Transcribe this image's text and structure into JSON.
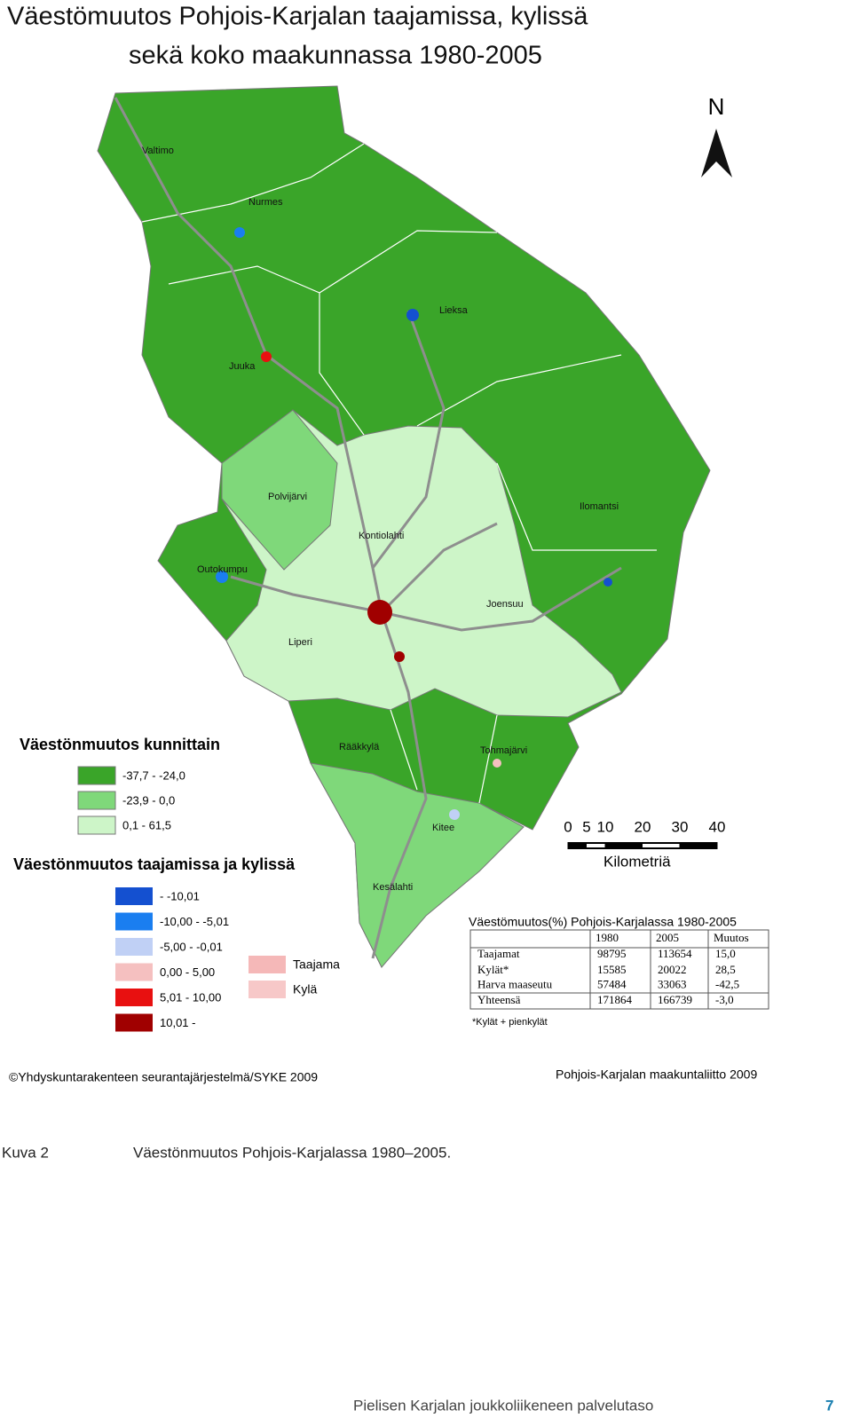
{
  "title": [
    "Väestömuutos Pohjois-Karjalan taajamissa, kylissä",
    "sekä koko maakunnassa 1980-2005"
  ],
  "map": {
    "north": "N",
    "places": [
      "Valtimo",
      "Nurmes",
      "Lieksa",
      "Juuka",
      "Polvijärvi",
      "Ilomantsi",
      "Kontiolahti",
      "Outokumpu",
      "Joensuu",
      "Liperi",
      "Rääkkylä",
      "Tohmajärvi",
      "Kitee",
      "Kesälahti"
    ]
  },
  "legend_municipal": {
    "title": "Väestönmuutos kunnittain",
    "items": [
      "-37,7 - -24,0",
      "-23,9 - 0,0",
      "0,1 - 61,5"
    ]
  },
  "legend_urban": {
    "title": "Väestönmuutos taajamissa ja kylissä",
    "items": [
      "- -10,01",
      "-10,00 - -5,01",
      "-5,00 - -0,01",
      "0,00 - 5,00",
      "5,01 - 10,00",
      "10,01 -"
    ],
    "types": [
      "Taajama",
      "Kylä"
    ]
  },
  "scale": {
    "ticks": [
      0,
      5,
      10,
      20,
      30,
      40
    ],
    "unit": "Kilometriä"
  },
  "table": {
    "title": "Väestömuutos(%) Pohjois-Karjalassa 1980-2005",
    "header": [
      "1980",
      "2005",
      "Muutos"
    ],
    "rows": [
      [
        "Taajamat",
        "98795",
        "113654",
        "15,0"
      ],
      [
        "Kylät*",
        "15585",
        "20022",
        "28,5"
      ],
      [
        "Harva maaseutu",
        "57484",
        "33063",
        "-42,5"
      ],
      [
        "Yhteensä",
        "171864",
        "166739",
        "-3,0"
      ]
    ],
    "note": "*Kylät + pienkylät"
  },
  "credits": [
    "©Yhdyskuntarakenteen seurantajärjestelmä/SYKE 2009",
    "Pohjois-Karjalan maakuntaliitto 2009"
  ],
  "caption": {
    "label": "Kuva 2",
    "text": "Väestönmuutos Pohjois-Karjalassa 1980–2005."
  },
  "footer": {
    "text": "Pielisen Karjalan joukkoliikeneen palvelutaso",
    "page": "7"
  }
}
